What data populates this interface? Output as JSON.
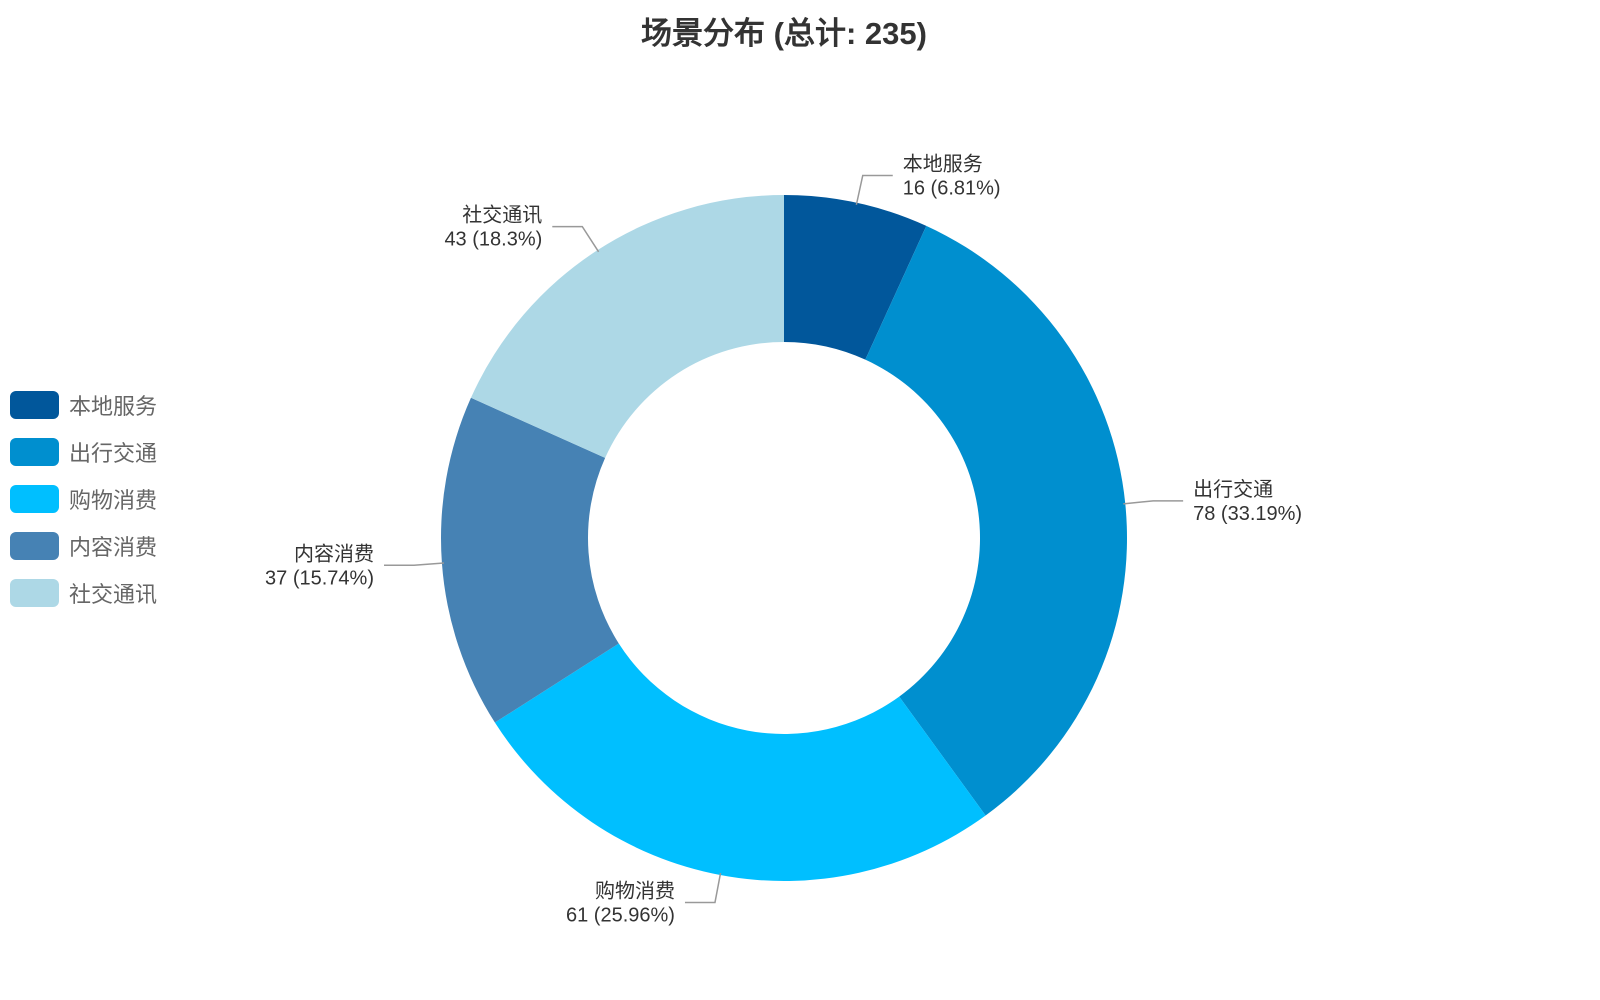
{
  "chart_data": {
    "type": "pie",
    "variant": "donut",
    "title": "场景分布 (总计: 235)",
    "total": 235,
    "legend_position": "left",
    "slices": [
      {
        "label": "本地服务",
        "value": 16,
        "percent": "6.81%",
        "color": "#01579b"
      },
      {
        "label": "出行交通",
        "value": 78,
        "percent": "33.19%",
        "color": "#008fcf"
      },
      {
        "label": "购物消费",
        "value": 61,
        "percent": "25.96%",
        "color": "#00bfff"
      },
      {
        "label": "内容消费",
        "value": 37,
        "percent": "15.74%",
        "color": "#4682b4"
      },
      {
        "label": "社交通讯",
        "value": 43,
        "percent": "18.3%",
        "color": "#add8e6"
      }
    ]
  }
}
